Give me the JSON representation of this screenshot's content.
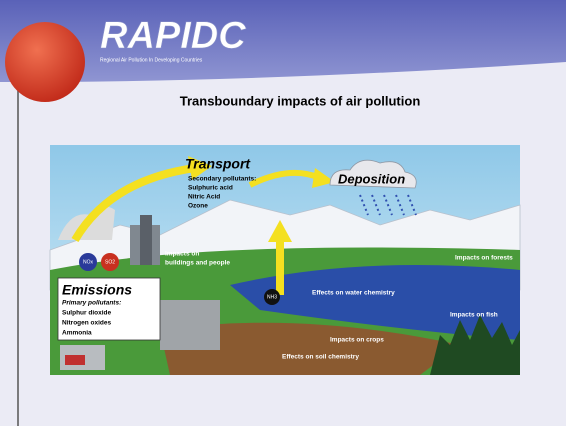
{
  "header": {
    "title": "RAPIDC",
    "subtitle": "Regional Air Pollution In Developing Countries"
  },
  "slide": {
    "title": "Transboundary impacts of air pollution"
  },
  "diagram": {
    "transport": {
      "title": "Transport",
      "lines": [
        "Secondary pollutants:",
        "Sulphuric acid",
        "Nitric Acid",
        "Ozone"
      ]
    },
    "deposition": "Deposition",
    "emissions": {
      "title": "Emissions",
      "lines": [
        "Primary pollutants:",
        "Sulphur dioxide",
        "Nitrogen oxides",
        "Ammonia"
      ]
    },
    "badges": {
      "nox": "NOx",
      "so2": "SO2",
      "nh3": "NH3"
    },
    "impacts": {
      "buildings": [
        "Impacts on",
        "buildings and people"
      ],
      "forests": "Impacts on forests",
      "water": "Effects on water chemistry",
      "fish": "Impacts on fish",
      "crops": "Impacts on crops",
      "soil": "Effects on soil chemistry"
    }
  }
}
